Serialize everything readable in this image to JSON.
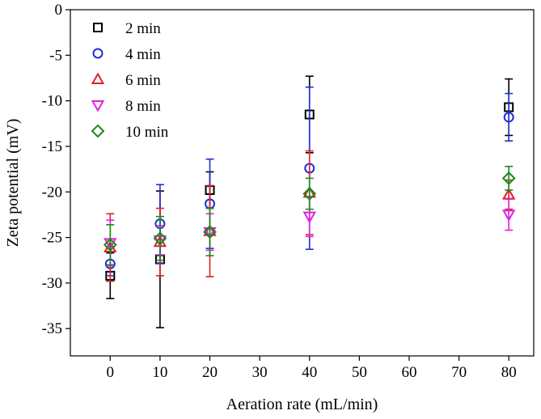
{
  "chart_data": {
    "type": "scatter",
    "title": "",
    "xlabel": "Aeration rate (mL/min)",
    "ylabel": "Zeta potential (mV)",
    "xlim": [
      -8,
      85
    ],
    "ylim": [
      -38,
      0
    ],
    "xticks": [
      0,
      10,
      20,
      30,
      40,
      50,
      60,
      70,
      80
    ],
    "yticks": [
      0,
      -5,
      -10,
      -15,
      -20,
      -25,
      -30,
      -35
    ],
    "xtick_labels": [
      "0",
      "10",
      "20",
      "30",
      "40",
      "50",
      "60",
      "70",
      "80"
    ],
    "ytick_labels": [
      "0",
      "-5",
      "-10",
      "-15",
      "-20",
      "-25",
      "-30",
      "-35"
    ],
    "grid": false,
    "legend_position": "top-left",
    "series": [
      {
        "name": "2 min",
        "marker": "square",
        "color": "#000000",
        "x": [
          0,
          10,
          20,
          40,
          80
        ],
        "y": [
          -29.2,
          -27.4,
          -19.8,
          -11.5,
          -10.7
        ],
        "err": [
          2.5,
          7.5,
          2.0,
          4.2,
          3.1
        ]
      },
      {
        "name": "4 min",
        "marker": "circle",
        "color": "#1f2fd0",
        "x": [
          0,
          10,
          20,
          40,
          80
        ],
        "y": [
          -27.9,
          -23.5,
          -21.3,
          -17.4,
          -11.8
        ],
        "err": [
          1.3,
          4.3,
          4.9,
          8.9,
          2.6
        ]
      },
      {
        "name": "6 min",
        "marker": "triangle-up",
        "color": "#e02020",
        "x": [
          0,
          10,
          20,
          40,
          80
        ],
        "y": [
          -26.1,
          -25.5,
          -24.3,
          -20.1,
          -20.3
        ],
        "err": [
          3.7,
          3.7,
          5.0,
          4.6,
          1.6
        ]
      },
      {
        "name": "8 min",
        "marker": "triangle-down",
        "color": "#e020e0",
        "x": [
          0,
          10,
          20,
          40,
          80
        ],
        "y": [
          -25.6,
          -25.3,
          -24.4,
          -22.7,
          -22.5
        ],
        "err": [
          2.5,
          1.6,
          2.0,
          2.2,
          1.7
        ]
      },
      {
        "name": "10 min",
        "marker": "diamond",
        "color": "#1a8a1a",
        "x": [
          0,
          10,
          20,
          40,
          80
        ],
        "y": [
          -25.8,
          -25.1,
          -24.4,
          -20.2,
          -18.5
        ],
        "err": [
          2.2,
          2.4,
          2.6,
          1.7,
          1.3
        ]
      }
    ]
  }
}
